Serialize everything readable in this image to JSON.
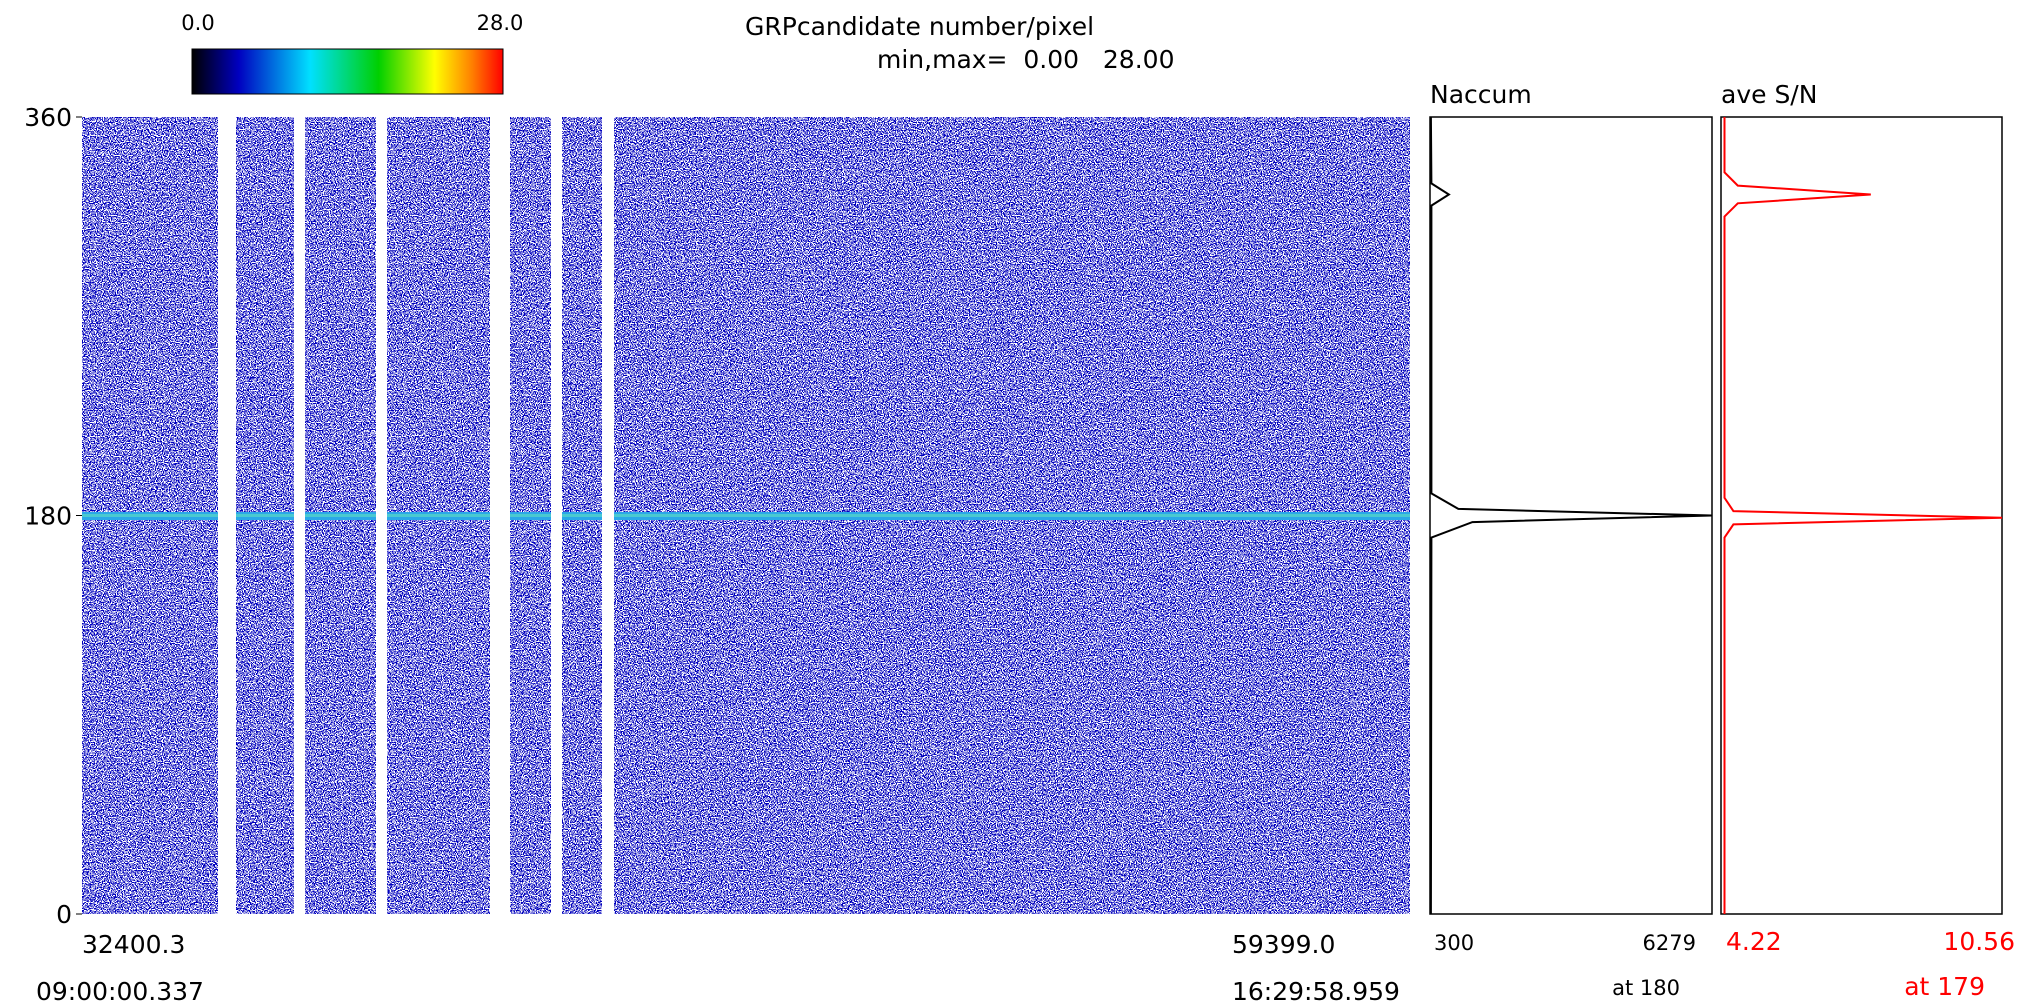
{
  "colorbar": {
    "min_label": "0.0",
    "max_label": "28.0"
  },
  "title": "GRPcandidate number/pixel",
  "subtitle": "min,max=  0.00   28.00",
  "heatmap": {
    "ylim": [
      0,
      360
    ],
    "yticks": [
      0,
      180,
      360
    ],
    "x_start": "32400.3",
    "x_end": "59399.0",
    "time_start": "09:00:00.337",
    "time_end": "16:29:58.959"
  },
  "profiles": [
    {
      "type": "line",
      "title": "Naccum",
      "color": "#000000",
      "xlim": [
        300,
        6279
      ],
      "peak_label": "at 180",
      "y": [
        0,
        170,
        177,
        180,
        183,
        190,
        320,
        325,
        330,
        360
      ],
      "values": [
        320,
        330,
        1200,
        6279,
        900,
        330,
        330,
        700,
        330,
        320
      ]
    },
    {
      "type": "line",
      "title": "ave S/N",
      "color": "#ff0000",
      "xlim": [
        4.22,
        10.56
      ],
      "peak_label": "at 179",
      "y": [
        0,
        170,
        176,
        179,
        182,
        188,
        315,
        321,
        325,
        329,
        335,
        360
      ],
      "values": [
        4.3,
        4.3,
        4.5,
        10.56,
        4.5,
        4.3,
        4.3,
        4.6,
        7.6,
        4.6,
        4.3,
        4.3
      ]
    }
  ]
}
